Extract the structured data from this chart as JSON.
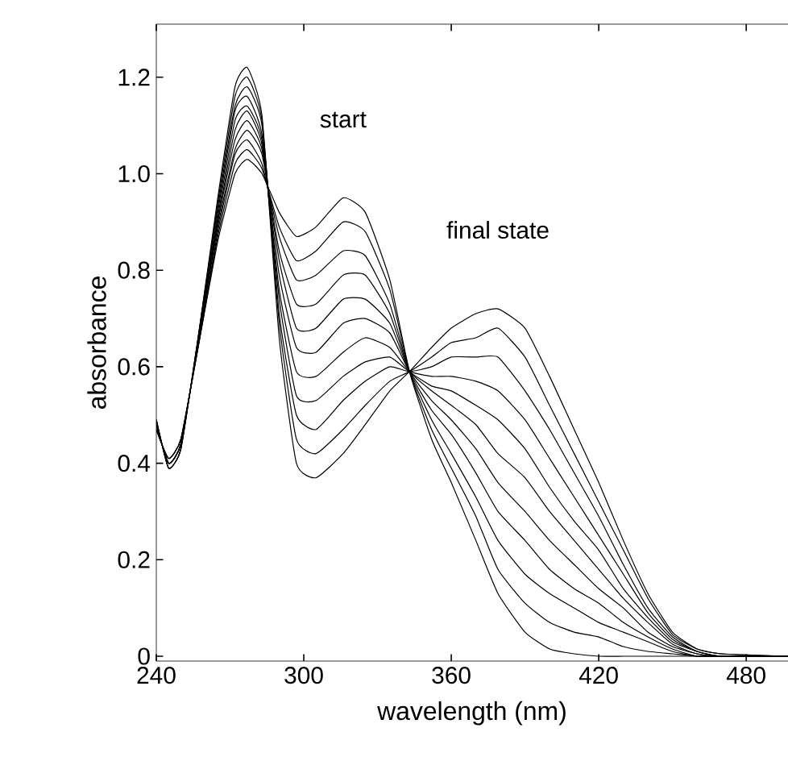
{
  "chart_data": {
    "type": "line",
    "xlabel": "wavelength (nm)",
    "ylabel": "absorbance",
    "x": [
      240,
      245,
      250,
      257,
      265,
      272,
      277,
      283,
      290,
      297,
      305,
      316,
      325,
      335,
      343,
      352,
      360,
      370,
      379,
      390,
      400,
      410,
      420,
      430,
      440,
      450,
      460,
      470,
      497
    ],
    "series": [
      {
        "color": "#000000",
        "values": [
          0.47,
          0.41,
          0.45,
          0.64,
          0.86,
          1.0,
          1.03,
          1.0,
          0.92,
          0.87,
          0.89,
          0.95,
          0.92,
          0.78,
          0.59,
          0.45,
          0.36,
          0.24,
          0.13,
          0.05,
          0.015,
          0.005,
          0,
          0,
          0,
          0,
          0,
          0,
          0
        ]
      },
      {
        "color": "#000000",
        "values": [
          0.47,
          0.41,
          0.45,
          0.64,
          0.87,
          1.02,
          1.05,
          1.01,
          0.89,
          0.82,
          0.84,
          0.9,
          0.88,
          0.76,
          0.59,
          0.47,
          0.39,
          0.29,
          0.18,
          0.11,
          0.07,
          0.05,
          0.04,
          0.02,
          0.01,
          0.005,
          0,
          0,
          0
        ]
      },
      {
        "color": "#000000",
        "values": [
          0.47,
          0.41,
          0.45,
          0.64,
          0.88,
          1.04,
          1.07,
          1.02,
          0.87,
          0.78,
          0.79,
          0.84,
          0.83,
          0.73,
          0.59,
          0.49,
          0.42,
          0.33,
          0.24,
          0.17,
          0.13,
          0.1,
          0.07,
          0.05,
          0.03,
          0.01,
          0,
          0,
          0
        ]
      },
      {
        "color": "#000000",
        "values": [
          0.48,
          0.4,
          0.44,
          0.65,
          0.89,
          1.05,
          1.09,
          1.04,
          0.84,
          0.73,
          0.73,
          0.79,
          0.79,
          0.71,
          0.59,
          0.51,
          0.46,
          0.38,
          0.3,
          0.24,
          0.18,
          0.14,
          0.11,
          0.07,
          0.04,
          0.015,
          0,
          0,
          0
        ]
      },
      {
        "color": "#000000",
        "values": [
          0.48,
          0.4,
          0.44,
          0.65,
          0.9,
          1.07,
          1.11,
          1.05,
          0.82,
          0.68,
          0.68,
          0.74,
          0.74,
          0.69,
          0.59,
          0.53,
          0.49,
          0.43,
          0.36,
          0.3,
          0.24,
          0.19,
          0.14,
          0.1,
          0.05,
          0.02,
          0.005,
          0,
          0
        ]
      },
      {
        "color": "#000000",
        "values": [
          0.48,
          0.4,
          0.44,
          0.65,
          0.9,
          1.09,
          1.13,
          1.06,
          0.79,
          0.64,
          0.63,
          0.69,
          0.7,
          0.67,
          0.59,
          0.55,
          0.52,
          0.48,
          0.42,
          0.37,
          0.3,
          0.24,
          0.18,
          0.12,
          0.07,
          0.025,
          0.005,
          0,
          0
        ]
      },
      {
        "color": "#000000",
        "values": [
          0.48,
          0.4,
          0.44,
          0.65,
          0.91,
          1.11,
          1.14,
          1.07,
          0.76,
          0.59,
          0.58,
          0.63,
          0.66,
          0.64,
          0.59,
          0.56,
          0.55,
          0.52,
          0.49,
          0.43,
          0.35,
          0.28,
          0.22,
          0.14,
          0.08,
          0.03,
          0.01,
          0,
          0
        ]
      },
      {
        "color": "#000000",
        "values": [
          0.48,
          0.4,
          0.44,
          0.65,
          0.92,
          1.13,
          1.16,
          1.08,
          0.74,
          0.54,
          0.53,
          0.58,
          0.61,
          0.62,
          0.59,
          0.58,
          0.58,
          0.57,
          0.55,
          0.49,
          0.41,
          0.33,
          0.25,
          0.17,
          0.09,
          0.035,
          0.01,
          0,
          0
        ]
      },
      {
        "color": "#000000",
        "values": [
          0.49,
          0.39,
          0.43,
          0.66,
          0.93,
          1.14,
          1.18,
          1.1,
          0.71,
          0.5,
          0.47,
          0.53,
          0.57,
          0.6,
          0.59,
          0.6,
          0.62,
          0.62,
          0.62,
          0.55,
          0.47,
          0.38,
          0.29,
          0.19,
          0.1,
          0.04,
          0.01,
          0,
          0
        ]
      },
      {
        "color": "#000000",
        "values": [
          0.49,
          0.39,
          0.43,
          0.66,
          0.94,
          1.16,
          1.2,
          1.11,
          0.69,
          0.45,
          0.42,
          0.47,
          0.52,
          0.57,
          0.59,
          0.62,
          0.65,
          0.66,
          0.68,
          0.62,
          0.52,
          0.42,
          0.32,
          0.22,
          0.12,
          0.045,
          0.015,
          0.005,
          0
        ]
      },
      {
        "color": "#000000",
        "values": [
          0.49,
          0.39,
          0.43,
          0.66,
          0.95,
          1.18,
          1.22,
          1.12,
          0.66,
          0.4,
          0.37,
          0.42,
          0.48,
          0.55,
          0.59,
          0.64,
          0.68,
          0.71,
          0.72,
          0.68,
          0.58,
          0.47,
          0.36,
          0.24,
          0.13,
          0.05,
          0.015,
          0.005,
          0
        ]
      }
    ],
    "annotations": [
      {
        "text": "start",
        "x": 316,
        "y": 0.95
      },
      {
        "text": "final state",
        "x": 379,
        "y": 0.72
      }
    ],
    "xlim": [
      240,
      497
    ],
    "ylim": [
      -0.01,
      1.31
    ],
    "xticks": [
      240,
      300,
      360,
      420,
      480
    ],
    "yticks": [
      0,
      0.2,
      0.4,
      0.6,
      0.8,
      {
        "value": 1,
        "label": "1.0"
      },
      1.2
    ]
  }
}
